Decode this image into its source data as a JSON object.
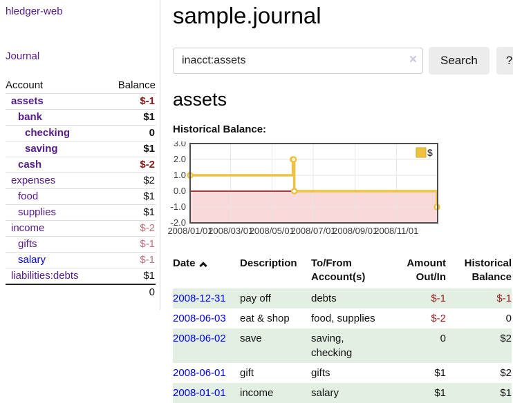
{
  "app": {
    "name": "hledger-web",
    "nav_journal": "Journal"
  },
  "page": {
    "title": "sample.journal",
    "account_heading": "assets",
    "chart_label": "Historical Balance:"
  },
  "search": {
    "value": "inacct:assets",
    "clear_label": "×",
    "button_label": "Search",
    "help_label": "?"
  },
  "sidebar_accounts": {
    "header": {
      "account": "Account",
      "balance": "Balance"
    },
    "rows": [
      {
        "name": "assets",
        "indent": 1,
        "bold": true,
        "balance": "$-1",
        "style": "neg-strong"
      },
      {
        "name": "bank",
        "indent": 2,
        "bold": true,
        "balance": "$1",
        "style": "pos-strong"
      },
      {
        "name": "checking",
        "indent": 3,
        "bold": true,
        "balance": "0",
        "style": "pos-strong"
      },
      {
        "name": "saving",
        "indent": 3,
        "bold": true,
        "balance": "$1",
        "style": "pos-strong"
      },
      {
        "name": "cash",
        "indent": 2,
        "bold": true,
        "balance": "$-2",
        "style": "neg-strong"
      },
      {
        "name": "expenses",
        "indent": 1,
        "bold": false,
        "balance": "$2",
        "style": "pos"
      },
      {
        "name": "food",
        "indent": 2,
        "bold": false,
        "balance": "$1",
        "style": "pos"
      },
      {
        "name": "supplies",
        "indent": 2,
        "bold": false,
        "balance": "$1",
        "style": "pos"
      },
      {
        "name": "income",
        "indent": 1,
        "bold": false,
        "balance": "$-2",
        "style": "neg-muted"
      },
      {
        "name": "gifts",
        "indent": 2,
        "bold": false,
        "balance": "$-1",
        "style": "neg-muted"
      },
      {
        "name": "salary",
        "indent": 2,
        "bold": false,
        "balance": "$-1",
        "style": "neg-muted",
        "link": "blue"
      },
      {
        "name": "liabilities:debts",
        "indent": 1,
        "bold": false,
        "balance": "$1",
        "style": "pos"
      }
    ],
    "total": "0"
  },
  "chart_data": {
    "type": "line",
    "step": true,
    "title": "Historical Balance",
    "series": [
      {
        "name": "$",
        "color": "#edc240",
        "points": [
          [
            "2008-01-01",
            1
          ],
          [
            "2008-06-01",
            2
          ],
          [
            "2008-06-02",
            2
          ],
          [
            "2008-06-03",
            0
          ],
          [
            "2008-12-31",
            -1
          ]
        ]
      }
    ],
    "xrange": [
      "2008-01-01",
      "2009-01-01"
    ],
    "ylim": [
      -2,
      3
    ],
    "yticks": [
      3,
      2,
      1,
      0,
      -1,
      -2
    ],
    "xticks": [
      "2008/01/01",
      "2008/03/01",
      "2008/05/01",
      "2008/07/01",
      "2008/09/01",
      "2008/11/01"
    ],
    "grid": true,
    "legend_position": "top-right",
    "negative_region_fill": "#f9d9d9",
    "zero_line_color": "#8b0000",
    "border_color": "#4d4d4d",
    "grid_color": "#e6e6e6",
    "tick_color": "#3b3b3b"
  },
  "register": {
    "columns": [
      {
        "l1": "Date",
        "l2": "",
        "align": "left",
        "sorted": "asc"
      },
      {
        "l1": "Description",
        "l2": "",
        "align": "left"
      },
      {
        "l1": "To/From",
        "l2": "Account(s)",
        "align": "left"
      },
      {
        "l1": "Amount",
        "l2": "Out/In",
        "align": "right"
      },
      {
        "l1": "Historical",
        "l2": "Balance",
        "align": "right"
      }
    ],
    "rows": [
      {
        "date": "2008-12-31",
        "description": "pay off",
        "accounts": "debts",
        "amount": "$-1",
        "amount_neg": true,
        "balance": "$-1",
        "balance_neg": true,
        "stripe": true
      },
      {
        "date": "2008-06-03",
        "description": "eat & shop",
        "accounts": "food, supplies",
        "amount": "$-2",
        "amount_neg": true,
        "balance": "0",
        "balance_neg": false,
        "stripe": false
      },
      {
        "date": "2008-06-02",
        "description": "save",
        "accounts": "saving,\nchecking",
        "amount": "0",
        "amount_neg": false,
        "balance": "$2",
        "balance_neg": false,
        "stripe": true
      },
      {
        "date": "2008-06-01",
        "description": "gift",
        "accounts": "gifts",
        "amount": "$1",
        "amount_neg": false,
        "balance": "$2",
        "balance_neg": false,
        "stripe": false
      },
      {
        "date": "2008-01-01",
        "description": "income",
        "accounts": "salary",
        "amount": "$1",
        "amount_neg": false,
        "balance": "$1",
        "balance_neg": false,
        "stripe": true
      }
    ]
  }
}
